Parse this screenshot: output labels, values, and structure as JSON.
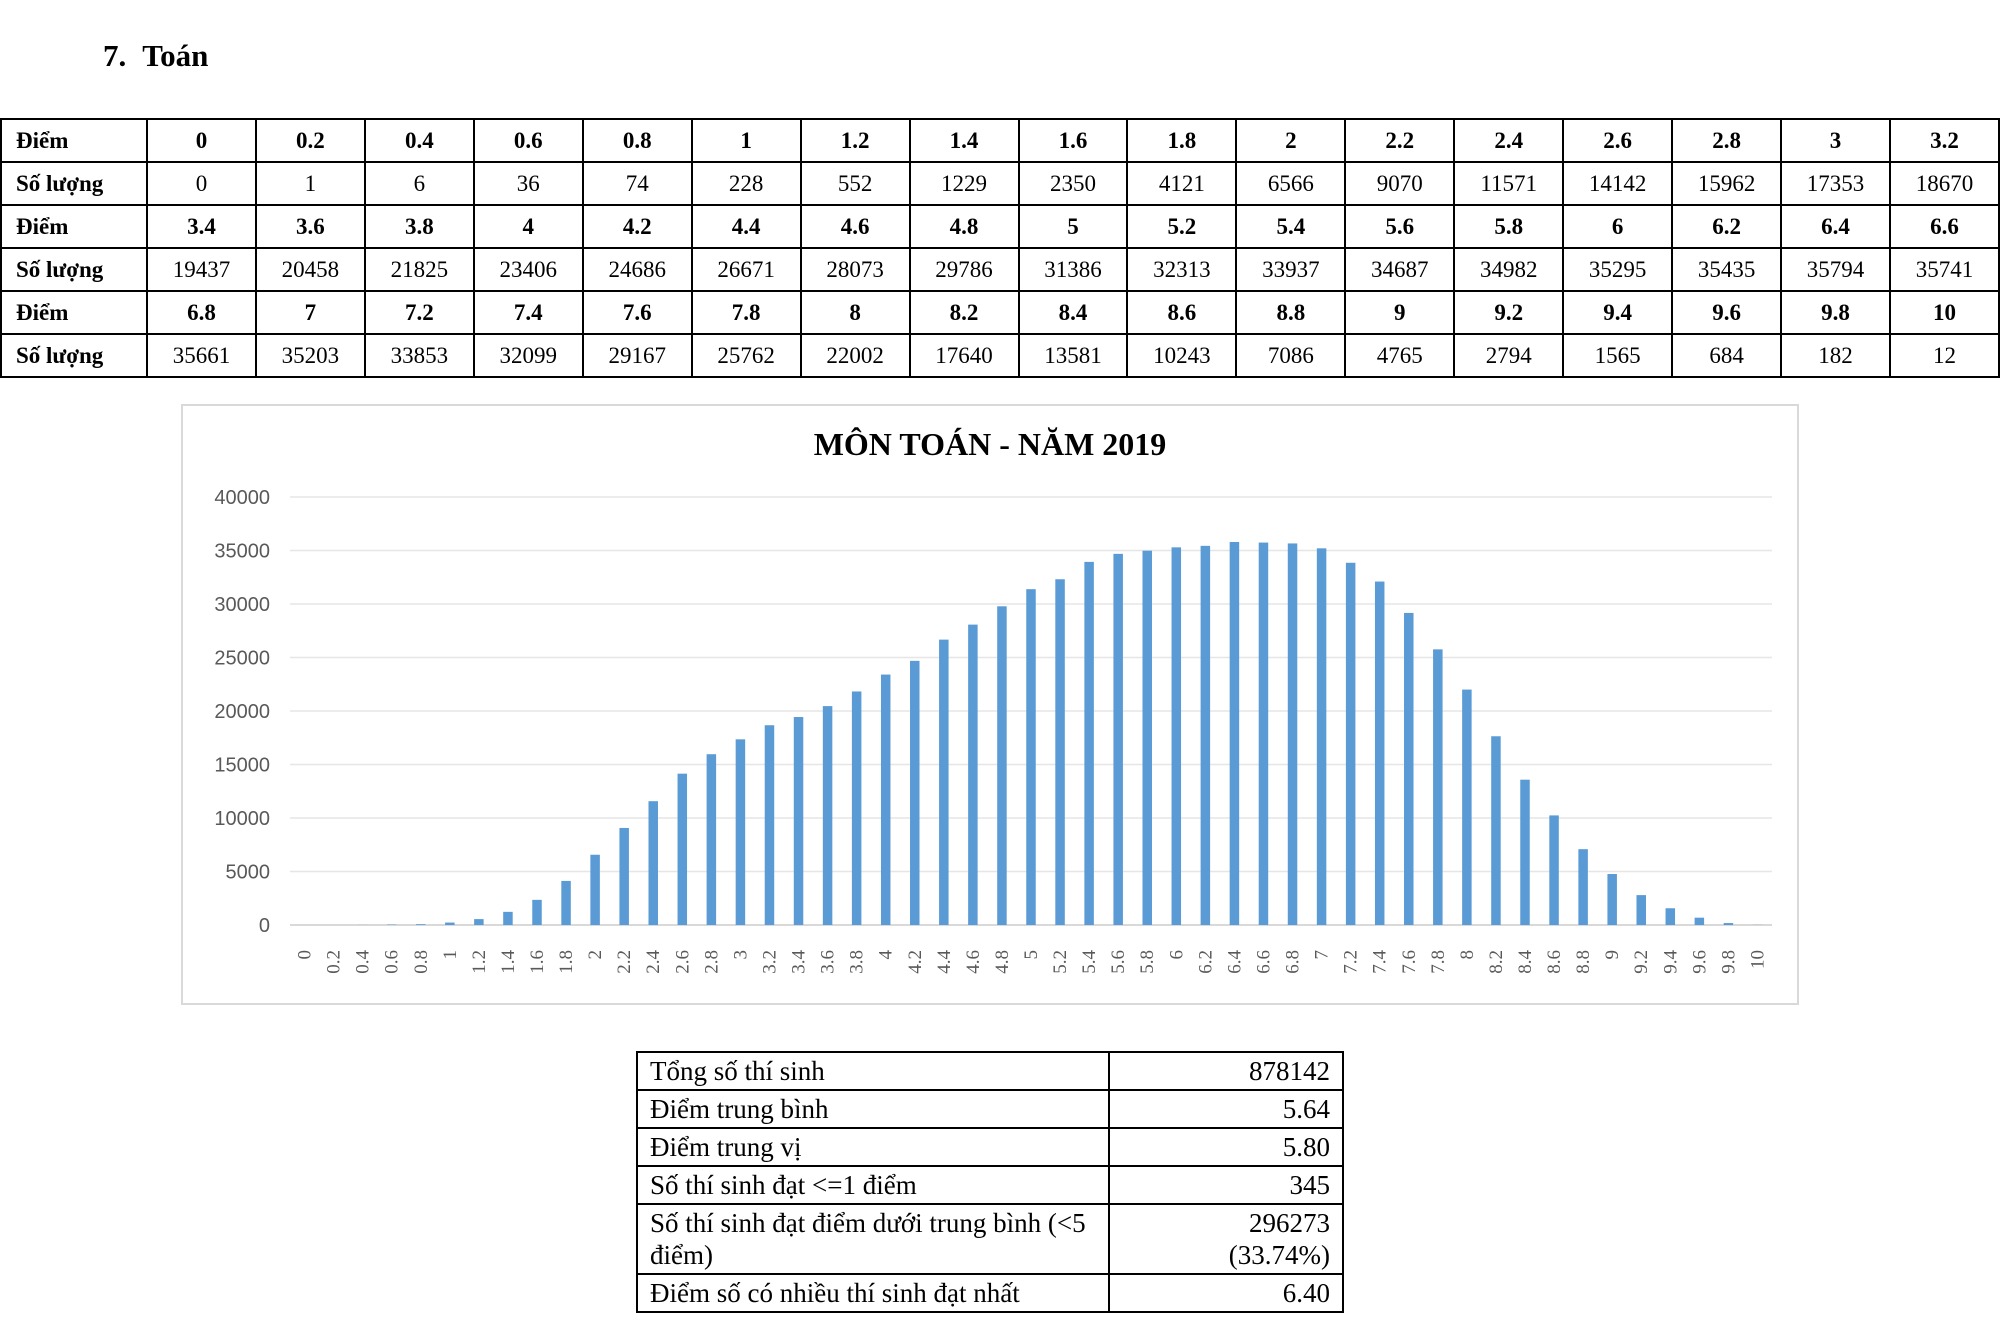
{
  "heading": {
    "number": "7.",
    "title": "Toán"
  },
  "distribution_table": {
    "row_labels": {
      "score": "Điểm",
      "count": "Số lượng"
    },
    "blocks": [
      {
        "scores": [
          "0",
          "0.2",
          "0.4",
          "0.6",
          "0.8",
          "1",
          "1.2",
          "1.4",
          "1.6",
          "1.8",
          "2",
          "2.2",
          "2.4",
          "2.6",
          "2.8",
          "3",
          "3.2"
        ],
        "counts": [
          "0",
          "1",
          "6",
          "36",
          "74",
          "228",
          "552",
          "1229",
          "2350",
          "4121",
          "6566",
          "9070",
          "11571",
          "14142",
          "15962",
          "17353",
          "18670"
        ]
      },
      {
        "scores": [
          "3.4",
          "3.6",
          "3.8",
          "4",
          "4.2",
          "4.4",
          "4.6",
          "4.8",
          "5",
          "5.2",
          "5.4",
          "5.6",
          "5.8",
          "6",
          "6.2",
          "6.4",
          "6.6"
        ],
        "counts": [
          "19437",
          "20458",
          "21825",
          "23406",
          "24686",
          "26671",
          "28073",
          "29786",
          "31386",
          "32313",
          "33937",
          "34687",
          "34982",
          "35295",
          "35435",
          "35794",
          "35741"
        ]
      },
      {
        "scores": [
          "6.8",
          "7",
          "7.2",
          "7.4",
          "7.6",
          "7.8",
          "8",
          "8.2",
          "8.4",
          "8.6",
          "8.8",
          "9",
          "9.2",
          "9.4",
          "9.6",
          "9.8",
          "10"
        ],
        "counts": [
          "35661",
          "35203",
          "33853",
          "32099",
          "29167",
          "25762",
          "22002",
          "17640",
          "13581",
          "10243",
          "7086",
          "4765",
          "2794",
          "1565",
          "684",
          "182",
          "12"
        ]
      }
    ]
  },
  "chart_data": {
    "type": "bar",
    "title": "MÔN TOÁN - NĂM 2019",
    "xlabel": "",
    "ylabel": "",
    "ylim": [
      0,
      40000
    ],
    "yticks": [
      0,
      5000,
      10000,
      15000,
      20000,
      25000,
      30000,
      35000,
      40000
    ],
    "grid": true,
    "legend": null,
    "bar_color": "#5b9bd5",
    "categories": [
      "0",
      "0.2",
      "0.4",
      "0.6",
      "0.8",
      "1",
      "1.2",
      "1.4",
      "1.6",
      "1.8",
      "2",
      "2.2",
      "2.4",
      "2.6",
      "2.8",
      "3",
      "3.2",
      "3.4",
      "3.6",
      "3.8",
      "4",
      "4.2",
      "4.4",
      "4.6",
      "4.8",
      "5",
      "5.2",
      "5.4",
      "5.6",
      "5.8",
      "6",
      "6.2",
      "6.4",
      "6.6",
      "6.8",
      "7",
      "7.2",
      "7.4",
      "7.6",
      "7.8",
      "8",
      "8.2",
      "8.4",
      "8.6",
      "8.8",
      "9",
      "9.2",
      "9.4",
      "9.6",
      "9.8",
      "10"
    ],
    "values": [
      0,
      1,
      6,
      36,
      74,
      228,
      552,
      1229,
      2350,
      4121,
      6566,
      9070,
      11571,
      14142,
      15962,
      17353,
      18670,
      19437,
      20458,
      21825,
      23406,
      24686,
      26671,
      28073,
      29786,
      31386,
      32313,
      33937,
      34687,
      34982,
      35295,
      35435,
      35794,
      35741,
      35661,
      35203,
      33853,
      32099,
      29167,
      25762,
      22002,
      17640,
      13581,
      10243,
      7086,
      4765,
      2794,
      1565,
      684,
      182,
      12
    ]
  },
  "stats_table": {
    "rows": [
      {
        "label": "Tổng số thí sinh",
        "value": "878142"
      },
      {
        "label": "Điểm trung bình",
        "value": "5.64"
      },
      {
        "label": "Điểm trung vị",
        "value": "5.80"
      },
      {
        "label": "Số thí sinh đạt <=1 điểm",
        "value": "345"
      },
      {
        "label": "Số thí sinh đạt điểm dưới trung bình (<5 điểm)",
        "value": "296273 (33.74%)"
      },
      {
        "label": "Điểm số có nhiều thí sinh đạt nhất",
        "value": "6.40"
      }
    ]
  }
}
